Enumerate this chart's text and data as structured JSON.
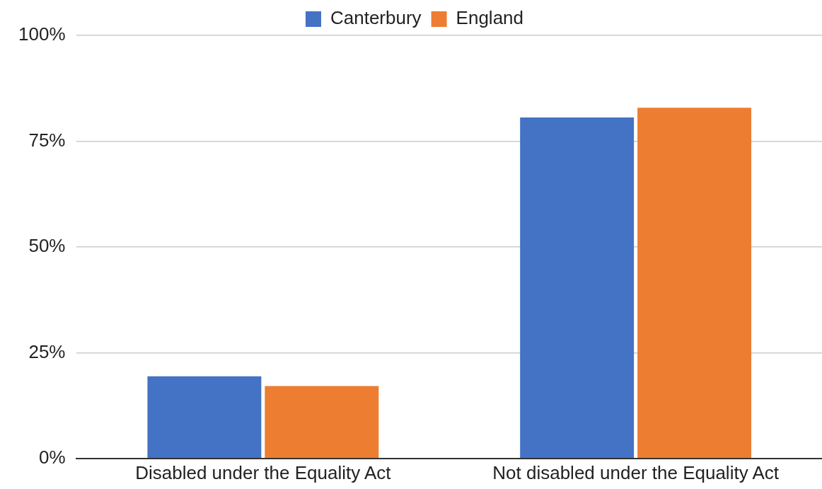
{
  "chart_data": {
    "type": "bar",
    "categories": [
      "Disabled under the Equality Act",
      "Not disabled under the Equality Act"
    ],
    "series": [
      {
        "name": "Canterbury",
        "color": "#4472c4",
        "values": [
          19.4,
          80.6
        ]
      },
      {
        "name": "England",
        "color": "#ed7d31",
        "values": [
          17.1,
          82.9
        ]
      }
    ],
    "ylim": [
      0,
      100
    ],
    "yticks": [
      {
        "value": 0,
        "label": "0%"
      },
      {
        "value": 25,
        "label": "25%"
      },
      {
        "value": 50,
        "label": "50%"
      },
      {
        "value": 75,
        "label": "75%"
      },
      {
        "value": 100,
        "label": "100%"
      }
    ],
    "grid": "y",
    "legend": "top"
  }
}
